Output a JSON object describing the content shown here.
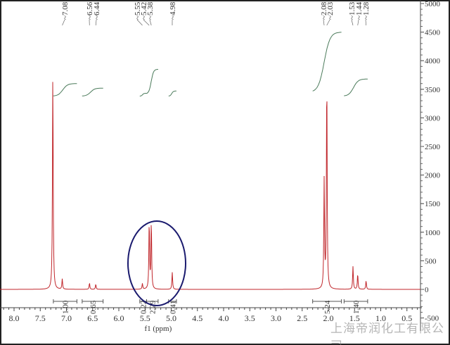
{
  "chart_data": {
    "type": "line",
    "xlabel": "f1 (ppm)",
    "ylabel": "",
    "xlim": [
      8.25,
      0.3
    ],
    "ylim": [
      -500,
      5000
    ],
    "x_ticks": [
      "8.0",
      "7.5",
      "7.0",
      "6.5",
      "6.0",
      "5.5",
      "5.0",
      "4.5",
      "4.0",
      "3.5",
      "3.0",
      "2.5",
      "2.0",
      "1.5",
      "1.0",
      "0.5"
    ],
    "y_ticks": [
      "5000",
      "4500",
      "4000",
      "3500",
      "3000",
      "2500",
      "2000",
      "1500",
      "1000",
      "500",
      "0",
      "-500"
    ],
    "peaks": [
      {
        "ppm": 7.26,
        "intensity": 3800
      },
      {
        "ppm": 7.08,
        "intensity": 180
      },
      {
        "ppm": 6.56,
        "intensity": 110
      },
      {
        "ppm": 6.44,
        "intensity": 90
      },
      {
        "ppm": 5.55,
        "intensity": 100
      },
      {
        "ppm": 5.42,
        "intensity": 1180
      },
      {
        "ppm": 5.38,
        "intensity": 1180
      },
      {
        "ppm": 4.98,
        "intensity": 300
      },
      {
        "ppm": 2.08,
        "intensity": 1900
      },
      {
        "ppm": 2.03,
        "intensity": 3750
      },
      {
        "ppm": 1.53,
        "intensity": 400
      },
      {
        "ppm": 1.44,
        "intensity": 270
      },
      {
        "ppm": 1.28,
        "intensity": 150
      }
    ],
    "peak_labels": [
      "7.08",
      "6.56",
      "6.44",
      "5.55",
      "5.42",
      "5.38",
      "4.98",
      "2.08",
      "2.03",
      "1.53",
      "1.44",
      "1.28"
    ],
    "integrals": [
      {
        "label": "1.00",
        "from": 7.25,
        "to": 6.8
      },
      {
        "label": "0.65",
        "from": 6.7,
        "to": 6.3
      },
      {
        "label": "0.22",
        "from": 5.6,
        "to": 5.47
      },
      {
        "label": "2.29",
        "from": 5.47,
        "to": 5.25
      },
      {
        "label": "0.41",
        "from": 5.05,
        "to": 4.9
      },
      {
        "label": "5.24",
        "from": 2.3,
        "to": 1.75
      },
      {
        "label": "1.40",
        "from": 1.7,
        "to": 1.25
      }
    ],
    "highlight": {
      "shape": "ellipse",
      "center_ppm": 5.35
    },
    "colors": {
      "spectrum": "#c0262b",
      "integral": "#4a7a5a",
      "highlight": "#1a1a6e"
    }
  },
  "watermark": "上海帝润化工有限公司"
}
